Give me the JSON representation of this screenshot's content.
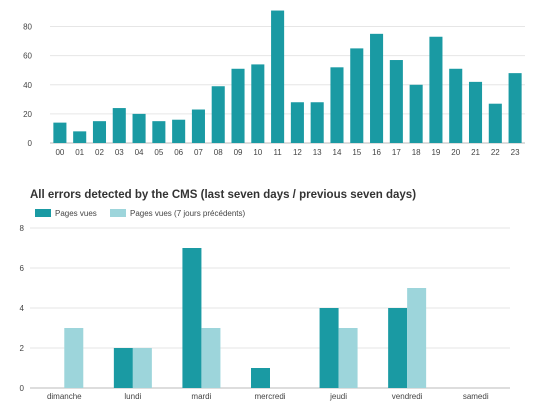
{
  "chart_data": [
    {
      "type": "bar",
      "categories": [
        "00",
        "01",
        "02",
        "03",
        "04",
        "05",
        "06",
        "07",
        "08",
        "09",
        "10",
        "11",
        "12",
        "13",
        "14",
        "15",
        "16",
        "17",
        "18",
        "19",
        "20",
        "21",
        "22",
        "23"
      ],
      "series": [
        {
          "values": [
            14,
            8,
            15,
            24,
            20,
            15,
            16,
            23,
            39,
            51,
            54,
            91,
            28,
            28,
            52,
            65,
            75,
            57,
            40,
            73,
            51,
            42,
            27,
            48
          ],
          "color": "#1a9aa3"
        }
      ],
      "title": "",
      "xlabel": "",
      "ylabel": "",
      "ylim": [
        0,
        90
      ],
      "yticks": [
        0,
        20,
        40,
        60,
        80
      ],
      "grid": true
    },
    {
      "type": "bar",
      "categories": [
        "dimanche",
        "lundi",
        "mardi",
        "mercredi",
        "jeudi",
        "vendredi",
        "samedi"
      ],
      "series": [
        {
          "name": "Pages vues",
          "values": [
            0,
            2,
            7,
            1,
            4,
            4,
            0
          ],
          "color": "#1a9aa3"
        },
        {
          "name": "Pages vues (7 jours précédents)",
          "values": [
            3,
            2,
            3,
            0,
            3,
            5,
            0
          ],
          "color": "#9dd5db"
        }
      ],
      "title": "All errors detected by the CMS (last seven days / previous seven days)",
      "xlabel": "",
      "ylabel": "",
      "ylim": [
        0,
        8
      ],
      "yticks": [
        0,
        2,
        4,
        6,
        8
      ],
      "grid": true,
      "legend_position": "top-left"
    }
  ]
}
